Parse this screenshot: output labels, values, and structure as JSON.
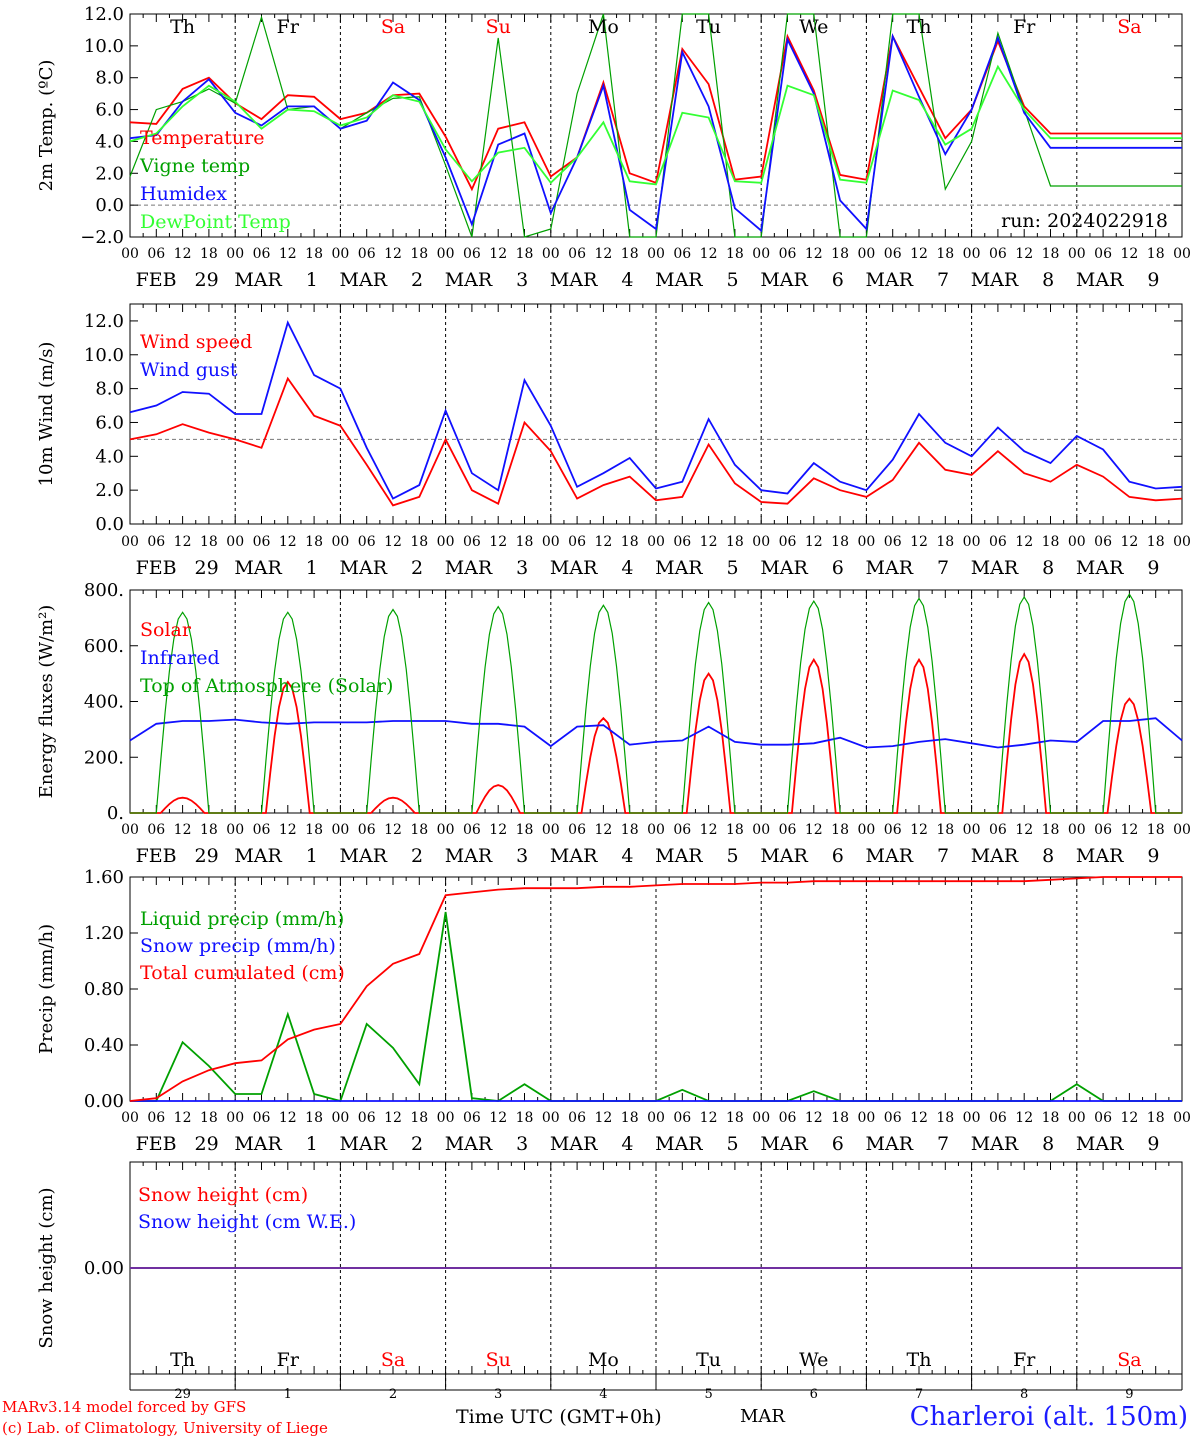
{
  "run_label": "run: 2024022918",
  "bottom_month": "MAR",
  "x_title": "Time UTC (GMT+0h)",
  "station": "Charleroi (alt. 150m)",
  "credits": [
    "MARv3.14 model forced by GFS",
    "(c) Lab. of Climatology, University of Liege"
  ],
  "hour_ticks": [
    "00",
    "06",
    "12",
    "18"
  ],
  "date_labels": [
    {
      "m": "FEB",
      "d": "29"
    },
    {
      "m": "MAR",
      "d": "1"
    },
    {
      "m": "MAR",
      "d": "2"
    },
    {
      "m": "MAR",
      "d": "3"
    },
    {
      "m": "MAR",
      "d": "4"
    },
    {
      "m": "MAR",
      "d": "5"
    },
    {
      "m": "MAR",
      "d": "6"
    },
    {
      "m": "MAR",
      "d": "7"
    },
    {
      "m": "MAR",
      "d": "8"
    },
    {
      "m": "MAR",
      "d": "9"
    }
  ],
  "weekdays": [
    {
      "n": "Th",
      "weekend": false
    },
    {
      "n": "Fr",
      "weekend": false
    },
    {
      "n": "Sa",
      "weekend": true
    },
    {
      "n": "Su",
      "weekend": true
    },
    {
      "n": "Mo",
      "weekend": false
    },
    {
      "n": "Tu",
      "weekend": false
    },
    {
      "n": "We",
      "weekend": false
    },
    {
      "n": "Th",
      "weekend": false
    },
    {
      "n": "Fr",
      "weekend": false
    },
    {
      "n": "Sa",
      "weekend": true
    }
  ],
  "day_numbers": [
    "29",
    "1",
    "2",
    "3",
    "4",
    "5",
    "6",
    "7",
    "8",
    "9"
  ],
  "colors": {
    "red": "#ff0000",
    "green": "#00a000",
    "blue": "#1010ff",
    "lightgreen": "#33ff33",
    "purple": "#7030a0"
  },
  "chart_data": [
    {
      "type": "line",
      "ylabel": "2m Temp. (ºC)",
      "ylim": [
        -2,
        12
      ],
      "yticks": [
        -2,
        0,
        2,
        4,
        6,
        8,
        10,
        12
      ],
      "ytick_labels": [
        "−2.0",
        "0.0",
        "2.0",
        "4.0",
        "6.0",
        "8.0",
        "10.0",
        "12.0"
      ],
      "ref_line": 0,
      "x_unit": "hours since Feb 29 00 UTC",
      "x": [
        0,
        6,
        12,
        18,
        24,
        30,
        36,
        42,
        48,
        54,
        60,
        66,
        72,
        78,
        84,
        90,
        96,
        102,
        108,
        114,
        120,
        126,
        132,
        138,
        144,
        150,
        156,
        162,
        168,
        174,
        180,
        186,
        192,
        198,
        204,
        210,
        216,
        222,
        228,
        234,
        240
      ],
      "series": [
        {
          "name": "Temperature",
          "color": "#ff0000",
          "values": [
            5.2,
            5.1,
            7.3,
            8.0,
            6.4,
            5.4,
            6.9,
            6.8,
            5.4,
            5.8,
            6.9,
            7.0,
            4.3,
            1.0,
            4.8,
            5.2,
            1.8,
            3.0,
            7.7,
            2.0,
            1.4,
            9.8,
            7.6,
            1.6,
            1.8,
            10.6,
            7.2,
            1.9,
            1.6,
            10.6,
            7.4,
            4.2,
            6.0,
            10.3,
            6.2,
            4.5,
            4.5,
            4.5,
            4.5,
            4.5,
            4.5
          ]
        },
        {
          "name": "Vigne temp",
          "color": "#00a000",
          "values": [
            1.8,
            6.0,
            6.5,
            7.3,
            6.4,
            11.8,
            6.0,
            6.2,
            4.8,
            5.8,
            6.7,
            6.8,
            2.5,
            -2.0,
            10.5,
            -2.0,
            -1.5,
            7.0,
            12.0,
            -2.0,
            -2.0,
            12.0,
            12.0,
            -2.0,
            -2.0,
            12.0,
            12.0,
            -2.0,
            -2.0,
            12.0,
            12.0,
            1.0,
            4.0,
            10.8,
            6.0,
            1.2,
            1.2,
            1.2,
            1.2,
            1.2,
            1.2
          ]
        },
        {
          "name": "Humidex",
          "color": "#1010ff",
          "values": [
            4.2,
            4.4,
            6.5,
            7.9,
            5.8,
            5.0,
            6.2,
            6.2,
            4.8,
            5.3,
            7.7,
            6.6,
            3.0,
            -1.2,
            3.8,
            4.5,
            -0.5,
            3.0,
            7.5,
            -0.3,
            -1.5,
            9.6,
            6.2,
            -0.2,
            -1.6,
            10.4,
            7.0,
            0.3,
            -1.5,
            10.6,
            6.8,
            3.2,
            6.0,
            10.5,
            5.8,
            3.6,
            3.6,
            3.6,
            3.6,
            3.6,
            3.6
          ]
        },
        {
          "name": "DewPoint Temp",
          "color": "#33ff33",
          "values": [
            4.0,
            4.5,
            6.2,
            7.5,
            6.5,
            4.8,
            6.0,
            5.9,
            5.0,
            5.5,
            6.9,
            6.5,
            3.5,
            1.5,
            3.3,
            3.6,
            1.4,
            3.0,
            5.2,
            1.5,
            1.3,
            5.8,
            5.5,
            1.5,
            1.4,
            7.5,
            6.9,
            1.6,
            1.4,
            7.2,
            6.6,
            3.8,
            4.8,
            8.7,
            6.0,
            4.2,
            4.2,
            4.2,
            4.2,
            4.2,
            4.2
          ]
        }
      ]
    },
    {
      "type": "line",
      "ylabel": "10m Wind (m/s)",
      "ylim": [
        0,
        13
      ],
      "yticks": [
        0,
        2,
        4,
        6,
        8,
        10,
        12
      ],
      "ytick_labels": [
        "0.0",
        "2.0",
        "4.0",
        "6.0",
        "8.0",
        "10.0",
        "12.0"
      ],
      "ref_line": 5,
      "x_unit": "hours since Feb 29 00 UTC",
      "x": [
        0,
        6,
        12,
        18,
        24,
        30,
        36,
        42,
        48,
        54,
        60,
        66,
        72,
        78,
        84,
        90,
        96,
        102,
        108,
        114,
        120,
        126,
        132,
        138,
        144,
        150,
        156,
        162,
        168,
        174,
        180,
        186,
        192,
        198,
        204,
        210,
        216,
        222,
        228,
        234,
        240
      ],
      "series": [
        {
          "name": "Wind speed",
          "color": "#ff0000",
          "values": [
            5.0,
            5.3,
            5.9,
            5.4,
            5.0,
            4.5,
            8.6,
            6.4,
            5.8,
            3.5,
            1.1,
            1.6,
            5.0,
            2.0,
            1.2,
            6.0,
            4.3,
            1.5,
            2.3,
            2.8,
            1.4,
            1.6,
            4.7,
            2.4,
            1.3,
            1.2,
            2.7,
            2.0,
            1.6,
            2.6,
            4.8,
            3.2,
            2.9,
            4.3,
            3.0,
            2.5,
            3.5,
            2.8,
            1.6,
            1.4,
            1.5
          ]
        },
        {
          "name": "Wind gust",
          "color": "#1010ff",
          "values": [
            6.6,
            7.0,
            7.8,
            7.7,
            6.5,
            6.5,
            11.9,
            8.8,
            8.0,
            4.5,
            1.5,
            2.3,
            6.7,
            3.0,
            2.0,
            8.5,
            5.8,
            2.2,
            3.0,
            3.9,
            2.1,
            2.5,
            6.2,
            3.5,
            2.0,
            1.8,
            3.6,
            2.5,
            2.0,
            3.8,
            6.5,
            4.8,
            4.0,
            5.7,
            4.3,
            3.6,
            5.2,
            4.4,
            2.5,
            2.1,
            2.2
          ]
        }
      ]
    },
    {
      "type": "line",
      "ylabel": "Energy fluxes (W/m²)",
      "ylim": [
        0,
        800
      ],
      "yticks": [
        0,
        200,
        400,
        600,
        800
      ],
      "ytick_labels": [
        "0.",
        "200.",
        "400.",
        "600.",
        "800."
      ],
      "x_unit": "hours since Feb 29 00 UTC",
      "series": [
        {
          "name": "Solar",
          "color": "#ff0000",
          "kind": "solar",
          "peaks": [
            55,
            470,
            55,
            100,
            340,
            500,
            550,
            550,
            570,
            410
          ]
        },
        {
          "name": "Infrared",
          "color": "#1010ff",
          "kind": "series",
          "x": [
            0,
            6,
            12,
            18,
            24,
            30,
            36,
            42,
            48,
            54,
            60,
            66,
            72,
            78,
            84,
            90,
            96,
            102,
            108,
            114,
            120,
            126,
            132,
            138,
            144,
            150,
            156,
            162,
            168,
            174,
            180,
            186,
            192,
            198,
            204,
            210,
            216,
            222,
            228,
            234,
            240
          ],
          "values": [
            260,
            320,
            330,
            330,
            335,
            325,
            320,
            325,
            325,
            325,
            330,
            330,
            330,
            320,
            320,
            310,
            240,
            310,
            315,
            245,
            255,
            260,
            310,
            255,
            245,
            245,
            250,
            270,
            235,
            240,
            255,
            265,
            250,
            235,
            245,
            260,
            255,
            330,
            330,
            340,
            260
          ]
        },
        {
          "name": "Top of Atmosphere (Solar)",
          "color": "#00a000",
          "kind": "toa",
          "peaks": [
            720,
            720,
            730,
            740,
            745,
            755,
            760,
            770,
            775,
            785
          ]
        }
      ]
    },
    {
      "type": "line",
      "ylabel": "Precip (mm/h)",
      "ylim": [
        0,
        1.6
      ],
      "yticks": [
        0,
        0.4,
        0.8,
        1.2,
        1.6
      ],
      "ytick_labels": [
        "0.00",
        "0.40",
        "0.80",
        "1.20",
        "1.60"
      ],
      "x_unit": "hours since Feb 29 00 UTC",
      "x": [
        0,
        6,
        12,
        18,
        24,
        30,
        36,
        42,
        48,
        54,
        60,
        66,
        72,
        78,
        84,
        90,
        96,
        102,
        108,
        114,
        120,
        126,
        132,
        138,
        144,
        150,
        156,
        162,
        168,
        174,
        180,
        186,
        192,
        198,
        204,
        210,
        216,
        222,
        228,
        234,
        240
      ],
      "series": [
        {
          "name": "Liquid precip (mm/h)",
          "color": "#00a000",
          "values": [
            0.0,
            0.0,
            0.42,
            0.25,
            0.05,
            0.05,
            0.62,
            0.05,
            0.0,
            0.55,
            0.38,
            0.12,
            1.35,
            0.02,
            0.0,
            0.12,
            0.0,
            0.0,
            0.0,
            0.0,
            0.0,
            0.08,
            0.0,
            0.0,
            0.0,
            0.0,
            0.07,
            0.0,
            0.0,
            0.0,
            0.0,
            0.0,
            0.0,
            0.0,
            0.0,
            0.0,
            0.12,
            0.0,
            0.0,
            0.0,
            0.0
          ]
        },
        {
          "name": "Snow precip (mm/h)",
          "color": "#1010ff",
          "values": [
            0,
            0,
            0,
            0,
            0,
            0,
            0,
            0,
            0,
            0,
            0,
            0,
            0,
            0,
            0,
            0,
            0,
            0,
            0,
            0,
            0,
            0,
            0,
            0,
            0,
            0,
            0,
            0,
            0,
            0,
            0,
            0,
            0,
            0,
            0,
            0,
            0,
            0,
            0,
            0,
            0
          ]
        },
        {
          "name": "Total cumulated (cm)",
          "color": "#ff0000",
          "values": [
            0.0,
            0.02,
            0.14,
            0.22,
            0.27,
            0.29,
            0.44,
            0.51,
            0.55,
            0.82,
            0.98,
            1.05,
            1.47,
            1.49,
            1.51,
            1.52,
            1.52,
            1.52,
            1.53,
            1.53,
            1.54,
            1.55,
            1.55,
            1.55,
            1.56,
            1.56,
            1.57,
            1.57,
            1.57,
            1.57,
            1.57,
            1.57,
            1.57,
            1.57,
            1.57,
            1.58,
            1.59,
            1.6,
            1.6,
            1.6,
            1.6
          ]
        }
      ]
    },
    {
      "type": "line",
      "ylabel": "Snow height (cm)",
      "ylim": [
        -1,
        1
      ],
      "yticks": [
        0
      ],
      "ytick_labels": [
        "0.00"
      ],
      "x_unit": "hours since Feb 29 00 UTC",
      "x": [
        0,
        240
      ],
      "series": [
        {
          "name": "Snow height (cm)",
          "color": "#ff0000",
          "values": [
            0,
            0
          ]
        },
        {
          "name": "Snow height (cm W.E.)",
          "color": "#1010ff",
          "values": [
            0,
            0
          ]
        }
      ]
    }
  ]
}
